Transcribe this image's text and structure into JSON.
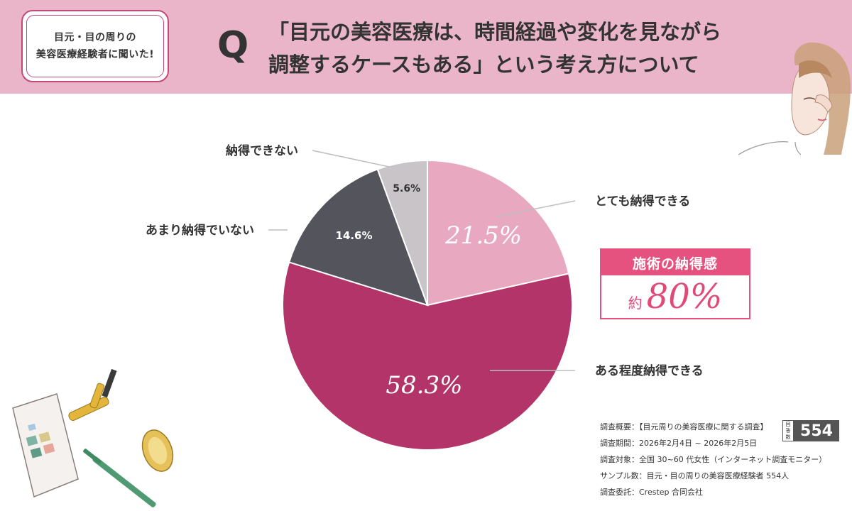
{
  "badge": {
    "line1": "目元・目の周りの",
    "line2": "美容医療経験者に聞いた!"
  },
  "question": {
    "mark": "Q",
    "line1": "「目元の美容医療は、時間経過や変化を見ながら",
    "line2": "調整するケースもある」という考え方について"
  },
  "callout": {
    "title": "施術の納得感",
    "prefix": "約",
    "value": "80%"
  },
  "survey": {
    "rows": [
      "調査概要：【目元周りの美容医療に関する調査】",
      "調査期間：2026年2月4日 ~ 2026年2月5日",
      "調査対象：全国 30~60 代女性（インターネット調査モニター）",
      "サンプル数：目元・目の周りの美容医療経験者 554人",
      "調査委託：Crestep 合同会社"
    ],
    "count_label": [
      "回",
      "答",
      "数"
    ],
    "count_value": "554"
  },
  "colors": {
    "header_bg": "#eab5c9",
    "accent": "#e6527f",
    "slice_very": "#e8a9c0",
    "slice_somewhat": "#b23468",
    "slice_not_much": "#54545c",
    "slice_not": "#c8c4c8"
  },
  "chart_data": {
    "type": "pie",
    "categories": [
      "とても納得できる",
      "ある程度納得できる",
      "あまり納得でいない",
      "納得できない"
    ],
    "values": [
      21.5,
      58.3,
      14.6,
      5.6
    ],
    "value_labels": [
      "21.5%",
      "58.3%",
      "14.6%",
      "5.6%"
    ],
    "unit": "%"
  },
  "icons": [
    "woman-illustration",
    "makeup-palette-icon",
    "mascara-icon",
    "compact-mirror-icon",
    "eyeliner-pen-icon"
  ]
}
